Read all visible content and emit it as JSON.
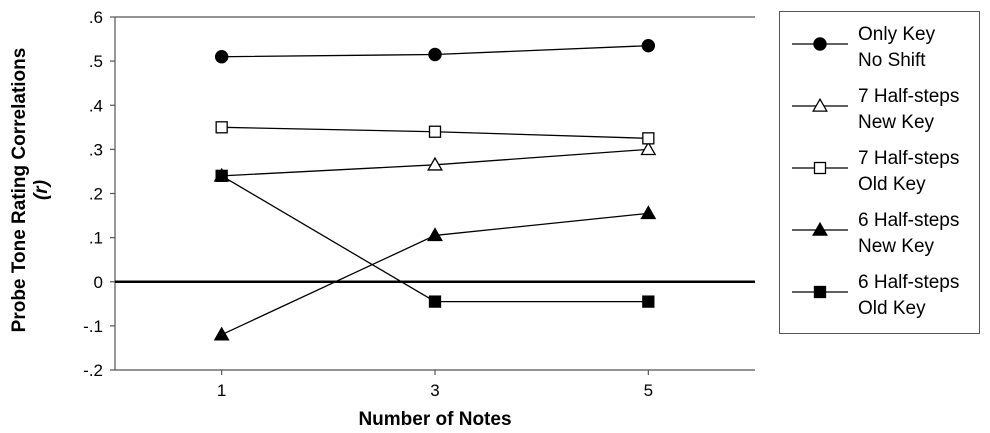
{
  "chart_data": {
    "type": "line",
    "xlabel": "Number of Notes",
    "ylabel_line1": "Probe Tone Rating Correlations",
    "ylabel_line2": "(r)",
    "x": [
      1,
      3,
      5
    ],
    "x_tick_labels": [
      "1",
      "3",
      "5"
    ],
    "xlim": [
      0,
      6
    ],
    "ylim": [
      -0.2,
      0.6
    ],
    "y_ticks": [
      -0.2,
      -0.1,
      0,
      0.1,
      0.2,
      0.3,
      0.4,
      0.5,
      0.6
    ],
    "y_tick_labels": [
      "-.2",
      "-.1",
      "0",
      ".1",
      ".2",
      ".3",
      ".4",
      ".5",
      ".6"
    ],
    "zero_line": true,
    "grid": false,
    "legend_position": "right",
    "series": [
      {
        "name_line1": "Only Key",
        "name_line2": "No Shift",
        "marker": "circle-filled",
        "values": [
          0.51,
          0.515,
          0.535
        ]
      },
      {
        "name_line1": "7 Half-steps",
        "name_line2": "New Key",
        "marker": "triangle-open",
        "values": [
          0.24,
          0.265,
          0.3
        ]
      },
      {
        "name_line1": "7 Half-steps",
        "name_line2": "Old Key",
        "marker": "square-open",
        "values": [
          0.35,
          0.34,
          0.325
        ]
      },
      {
        "name_line1": "6 Half-steps",
        "name_line2": "New Key",
        "marker": "triangle-filled",
        "values": [
          -0.12,
          0.105,
          0.155
        ]
      },
      {
        "name_line1": "6 Half-steps",
        "name_line2": "Old Key",
        "marker": "square-filled",
        "values": [
          0.24,
          -0.045,
          -0.045
        ]
      }
    ]
  }
}
